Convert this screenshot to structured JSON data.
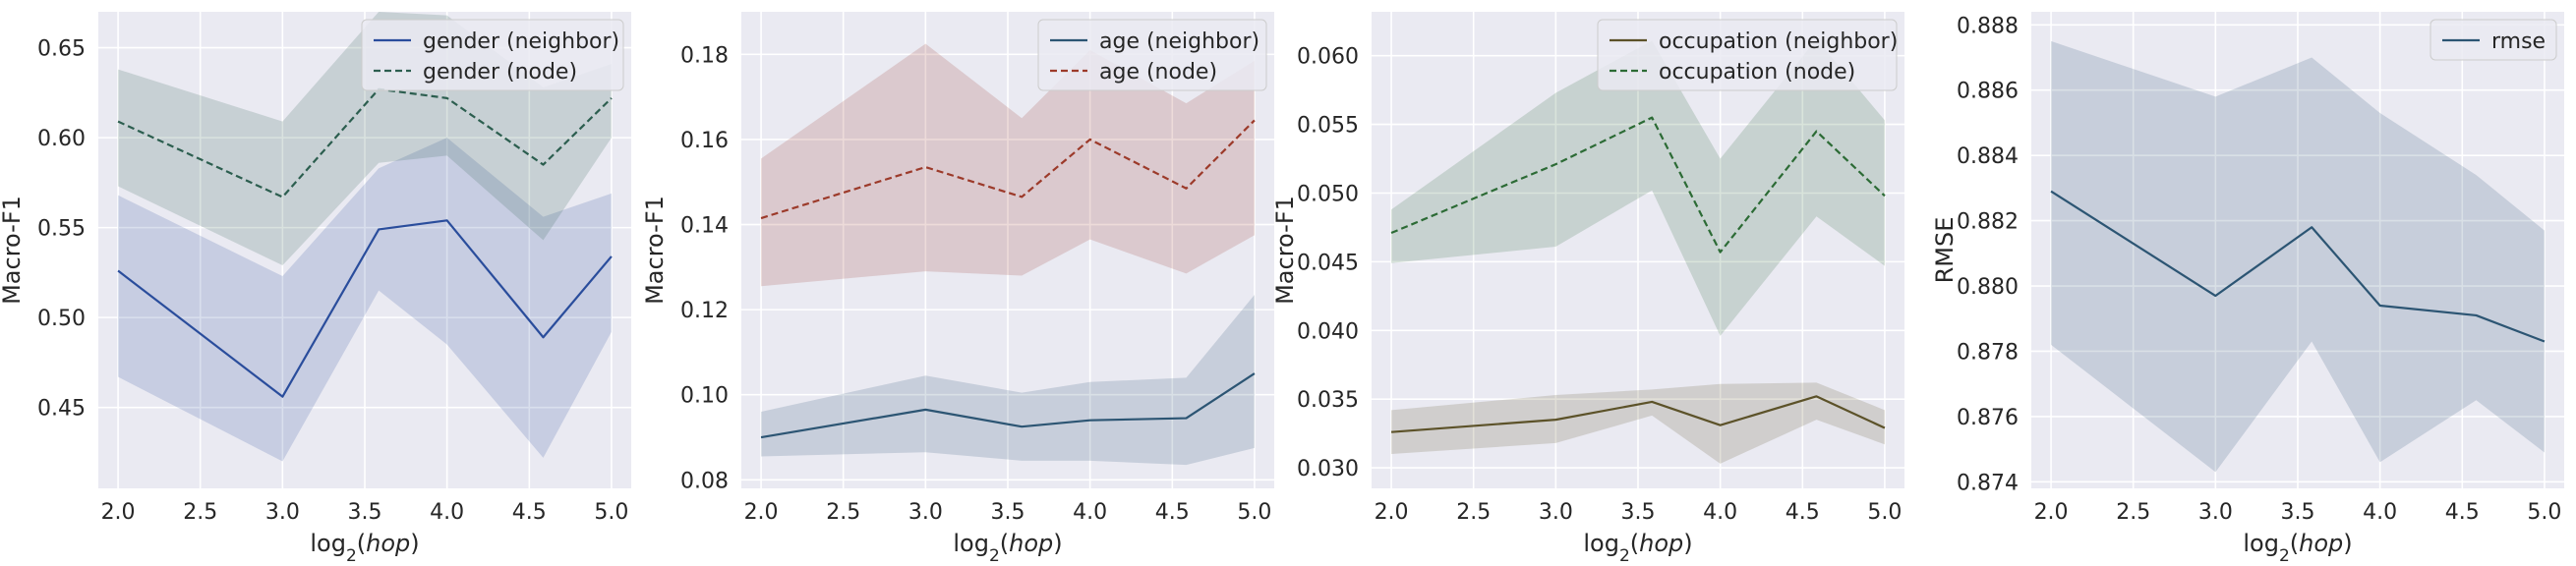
{
  "chart_data": [
    {
      "type": "line",
      "title": "",
      "xlabel": "log2(hop)",
      "ylabel": "Macro-F1",
      "xlim": [
        1.88,
        5.12
      ],
      "ylim": [
        0.405,
        0.67
      ],
      "xticks": [
        2.0,
        2.5,
        3.0,
        3.5,
        4.0,
        4.5,
        5.0
      ],
      "xtick_labels": [
        "2.0",
        "2.5",
        "3.0",
        "3.5",
        "4.0",
        "4.5",
        "5.0"
      ],
      "yticks": [
        0.45,
        0.5,
        0.55,
        0.6,
        0.65
      ],
      "ytick_labels": [
        "0.45",
        "0.50",
        "0.55",
        "0.60",
        "0.65"
      ],
      "legend_position": "top-right",
      "series": [
        {
          "name": "gender (neighbor)",
          "color": "#2a4d9c",
          "dash": "solid",
          "band_opacity": 0.18,
          "x": [
            2.0,
            3.0,
            3.585,
            4.0,
            4.585,
            5.0
          ],
          "values": [
            0.526,
            0.456,
            0.549,
            0.554,
            0.489,
            0.534
          ],
          "lower": [
            0.467,
            0.42,
            0.515,
            0.485,
            0.422,
            0.492
          ],
          "upper": [
            0.568,
            0.523,
            0.583,
            0.6,
            0.556,
            0.569
          ]
        },
        {
          "name": "gender (node)",
          "color": "#2c5e4f",
          "dash": "dashed",
          "band_opacity": 0.18,
          "x": [
            2.0,
            3.0,
            3.585,
            4.0,
            4.585,
            5.0
          ],
          "values": [
            0.609,
            0.567,
            0.627,
            0.622,
            0.585,
            0.622
          ],
          "lower": [
            0.573,
            0.529,
            0.586,
            0.59,
            0.543,
            0.6
          ],
          "upper": [
            0.638,
            0.609,
            0.67,
            0.668,
            0.628,
            0.641
          ]
        }
      ]
    },
    {
      "type": "line",
      "title": "",
      "xlabel": "log2(hop)",
      "ylabel": "Macro-F1",
      "xlim": [
        1.88,
        5.12
      ],
      "ylim": [
        0.078,
        0.19
      ],
      "xticks": [
        2.0,
        2.5,
        3.0,
        3.5,
        4.0,
        4.5,
        5.0
      ],
      "xtick_labels": [
        "2.0",
        "2.5",
        "3.0",
        "3.5",
        "4.0",
        "4.5",
        "5.0"
      ],
      "yticks": [
        0.08,
        0.1,
        0.12,
        0.14,
        0.16,
        0.18
      ],
      "ytick_labels": [
        "0.08",
        "0.10",
        "0.12",
        "0.14",
        "0.16",
        "0.18"
      ],
      "legend_position": "top-right",
      "series": [
        {
          "name": "age (neighbor)",
          "color": "#2c5573",
          "dash": "solid",
          "band_opacity": 0.18,
          "x": [
            2.0,
            3.0,
            3.585,
            4.0,
            4.585,
            5.0
          ],
          "values": [
            0.09,
            0.0965,
            0.0925,
            0.094,
            0.0945,
            0.105
          ],
          "lower": [
            0.0855,
            0.0865,
            0.0845,
            0.0845,
            0.0835,
            0.0875
          ],
          "upper": [
            0.096,
            0.1045,
            0.1005,
            0.103,
            0.104,
            0.1235
          ]
        },
        {
          "name": "age (node)",
          "color": "#9c3a2a",
          "dash": "dashed",
          "band_opacity": 0.18,
          "x": [
            2.0,
            3.0,
            3.585,
            4.0,
            4.585,
            5.0
          ],
          "values": [
            0.1415,
            0.1535,
            0.1465,
            0.16,
            0.1485,
            0.1645
          ],
          "lower": [
            0.1255,
            0.129,
            0.128,
            0.1365,
            0.1285,
            0.1375
          ],
          "upper": [
            0.1555,
            0.1825,
            0.165,
            0.181,
            0.1685,
            0.1785
          ]
        }
      ]
    },
    {
      "type": "line",
      "title": "",
      "xlabel": "log2(hop)",
      "ylabel": "Macro-F1",
      "xlim": [
        1.88,
        5.12
      ],
      "ylim": [
        0.0285,
        0.0632
      ],
      "xticks": [
        2.0,
        2.5,
        3.0,
        3.5,
        4.0,
        4.5,
        5.0
      ],
      "xtick_labels": [
        "2.0",
        "2.5",
        "3.0",
        "3.5",
        "4.0",
        "4.5",
        "5.0"
      ],
      "yticks": [
        0.03,
        0.035,
        0.04,
        0.045,
        0.05,
        0.055,
        0.06
      ],
      "ytick_labels": [
        "0.030",
        "0.035",
        "0.040",
        "0.045",
        "0.050",
        "0.055",
        "0.060"
      ],
      "legend_position": "top-right",
      "series": [
        {
          "name": "occupation (neighbor)",
          "color": "#5c5229",
          "dash": "solid",
          "band_opacity": 0.18,
          "x": [
            2.0,
            3.0,
            3.585,
            4.0,
            4.585,
            5.0
          ],
          "values": [
            0.0326,
            0.0335,
            0.0348,
            0.0331,
            0.0352,
            0.0329
          ],
          "lower": [
            0.031,
            0.0318,
            0.0338,
            0.0303,
            0.0335,
            0.0317
          ],
          "upper": [
            0.0342,
            0.0353,
            0.0357,
            0.0361,
            0.0362,
            0.0342
          ]
        },
        {
          "name": "occupation (node)",
          "color": "#2c6b35",
          "dash": "dashed",
          "band_opacity": 0.18,
          "x": [
            2.0,
            3.0,
            3.585,
            4.0,
            4.585,
            5.0
          ],
          "values": [
            0.0471,
            0.0521,
            0.0555,
            0.0457,
            0.0545,
            0.0498
          ],
          "lower": [
            0.0449,
            0.0461,
            0.0502,
            0.0396,
            0.0483,
            0.0447
          ],
          "upper": [
            0.0488,
            0.0573,
            0.0611,
            0.0525,
            0.0612,
            0.0553
          ]
        }
      ]
    },
    {
      "type": "line",
      "title": "",
      "xlabel": "log2(hop)",
      "ylabel": "RMSE",
      "xlim": [
        1.88,
        5.12
      ],
      "ylim": [
        0.8738,
        0.8884
      ],
      "xticks": [
        2.0,
        2.5,
        3.0,
        3.5,
        4.0,
        4.5,
        5.0
      ],
      "xtick_labels": [
        "2.0",
        "2.5",
        "3.0",
        "3.5",
        "4.0",
        "4.5",
        "5.0"
      ],
      "yticks": [
        0.874,
        0.876,
        0.878,
        0.88,
        0.882,
        0.884,
        0.886,
        0.888
      ],
      "ytick_labels": [
        "0.874",
        "0.876",
        "0.878",
        "0.880",
        "0.882",
        "0.884",
        "0.886",
        "0.888"
      ],
      "legend_position": "top-right",
      "series": [
        {
          "name": "rmse",
          "color": "#2c5573",
          "dash": "solid",
          "band_opacity": 0.18,
          "x": [
            2.0,
            3.0,
            3.585,
            4.0,
            4.585,
            5.0
          ],
          "values": [
            0.8829,
            0.8797,
            0.8818,
            0.8794,
            0.8791,
            0.8783
          ],
          "lower": [
            0.8782,
            0.8743,
            0.8783,
            0.8746,
            0.8765,
            0.8749
          ],
          "upper": [
            0.8875,
            0.8858,
            0.887,
            0.8853,
            0.8834,
            0.8817
          ]
        }
      ]
    }
  ]
}
